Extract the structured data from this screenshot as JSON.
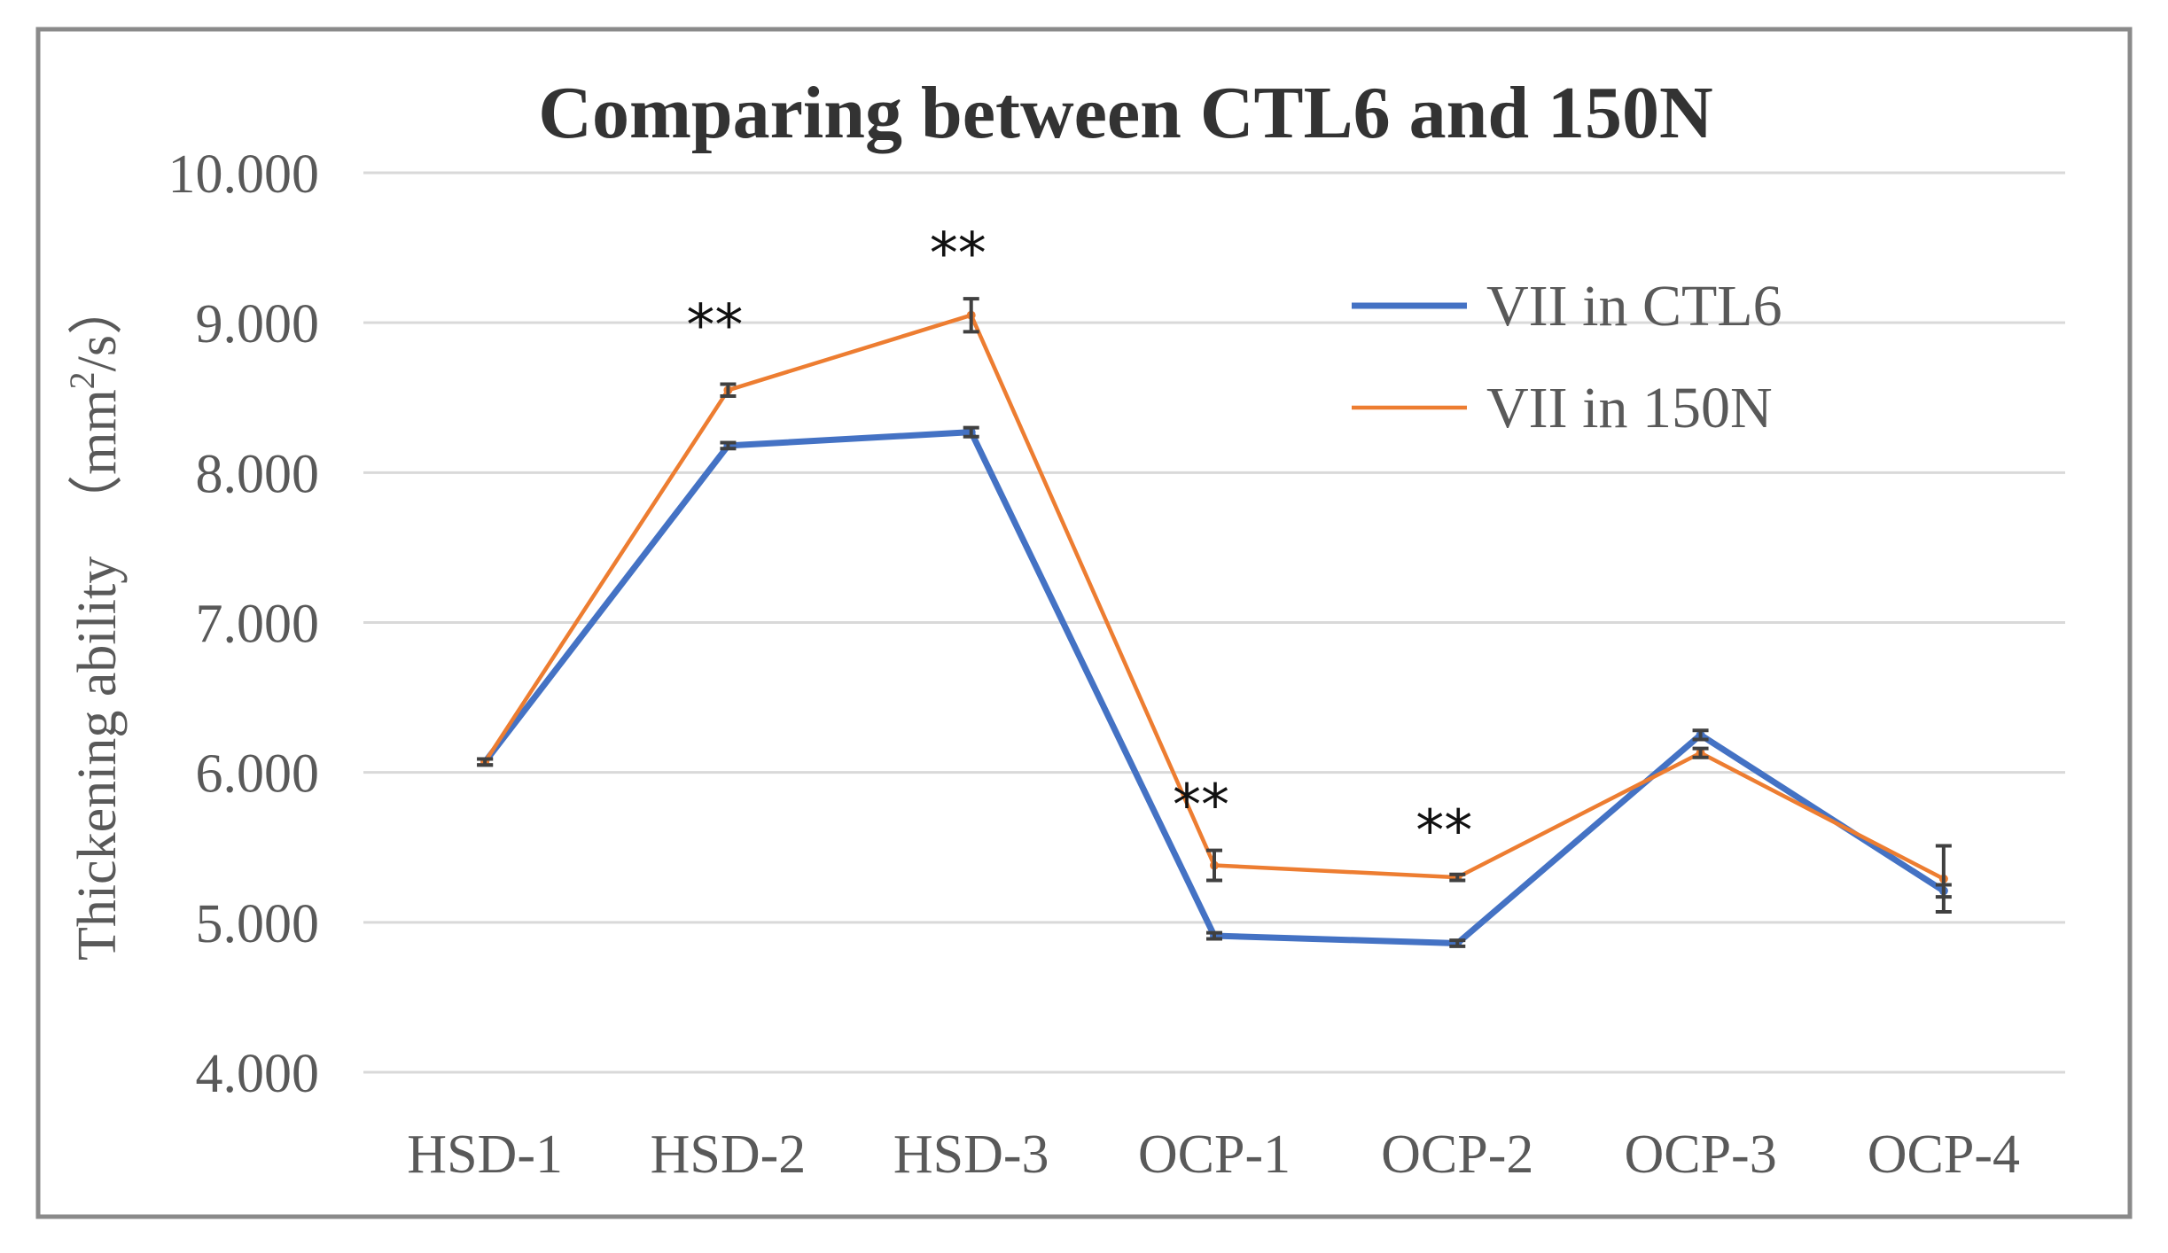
{
  "chart_data": {
    "type": "line",
    "title": "Comparing between CTL6 and 150N",
    "xlabel": "",
    "ylabel": "Thickening ability　（mm²/s）",
    "ylabel_main": "Thickening ability",
    "ylabel_unit_open": "（mm",
    "ylabel_unit_sup": "2",
    "ylabel_unit_close": "/s）",
    "ylim": [
      4.0,
      10.0
    ],
    "yticks": [
      "4.000",
      "5.000",
      "6.000",
      "7.000",
      "8.000",
      "9.000",
      "10.000"
    ],
    "ytick_values": [
      4,
      5,
      6,
      7,
      8,
      9,
      10
    ],
    "grid": true,
    "legend_position": "top-right",
    "categories": [
      "HSD-1",
      "HSD-2",
      "HSD-3",
      "OCP-1",
      "OCP-2",
      "OCP-3",
      "OCP-4"
    ],
    "series": [
      {
        "name": "VII in CTL6",
        "color": "#4472C4",
        "values": [
          6.07,
          8.18,
          8.27,
          4.91,
          4.86,
          6.25,
          5.21
        ],
        "errors": [
          0.02,
          0.02,
          0.03,
          0.02,
          0.02,
          0.03,
          0.04
        ]
      },
      {
        "name": "VII in 150N",
        "color": "#ED7D31",
        "values": [
          6.07,
          8.55,
          9.05,
          5.38,
          5.3,
          6.13,
          5.29
        ],
        "errors": [
          0.02,
          0.04,
          0.11,
          0.1,
          0.02,
          0.03,
          0.22
        ]
      }
    ],
    "annotations": [
      {
        "category_index": 1,
        "text": "**",
        "y": 9.0
      },
      {
        "category_index": 2,
        "text": "**",
        "y": 9.48
      },
      {
        "category_index": 3,
        "text": "**",
        "y": 5.8
      },
      {
        "category_index": 4,
        "text": "**",
        "y": 5.63
      }
    ]
  }
}
